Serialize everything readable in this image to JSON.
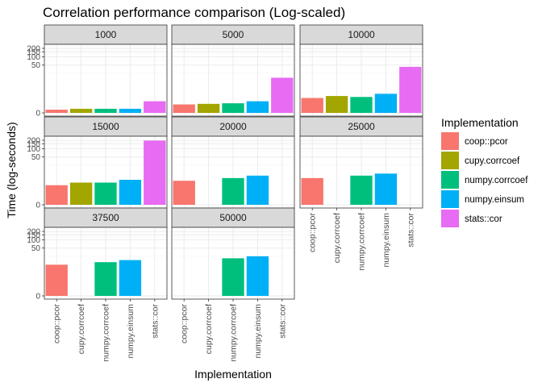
{
  "chart_data": {
    "type": "bar",
    "title": "Correlation performance comparison (Log-scaled)",
    "xlabel": "Implementation",
    "ylabel": "Time (log-seconds)",
    "scale": "log1p",
    "y_ticks": [
      0,
      50,
      100,
      150,
      200
    ],
    "grid": true,
    "legend_position": "right",
    "legend": {
      "title": "Implementation"
    },
    "categories": [
      "coop::pcor",
      "cupy.corrcoef",
      "numpy.corrcoef",
      "numpy.einsum",
      "stats::cor"
    ],
    "colors": [
      "#F8766D",
      "#A3A500",
      "#00BF7D",
      "#00B0F6",
      "#E76BF3"
    ],
    "facets": [
      {
        "label": "1000",
        "values": [
          0.3,
          0.4,
          0.4,
          0.4,
          1.6
        ]
      },
      {
        "label": "5000",
        "values": [
          1.0,
          1.1,
          1.2,
          1.6,
          17
        ]
      },
      {
        "label": "10000",
        "values": [
          2.4,
          3.0,
          2.7,
          3.8,
          43
        ]
      },
      {
        "label": "15000",
        "values": [
          4.0,
          5.2,
          5.2,
          6.8,
          195
        ]
      },
      {
        "label": "20000",
        "values": [
          6.2,
          null,
          8.0,
          10.0,
          null
        ]
      },
      {
        "label": "25000",
        "values": [
          8.0,
          null,
          10.0,
          12.0,
          null
        ]
      },
      {
        "label": "37500",
        "values": [
          12.0,
          null,
          15.0,
          18.0,
          null
        ]
      },
      {
        "label": "50000",
        "values": null
      },
      {
        "label": "50000",
        "values": [
          null,
          null,
          21.0,
          25.0,
          null
        ]
      }
    ]
  }
}
